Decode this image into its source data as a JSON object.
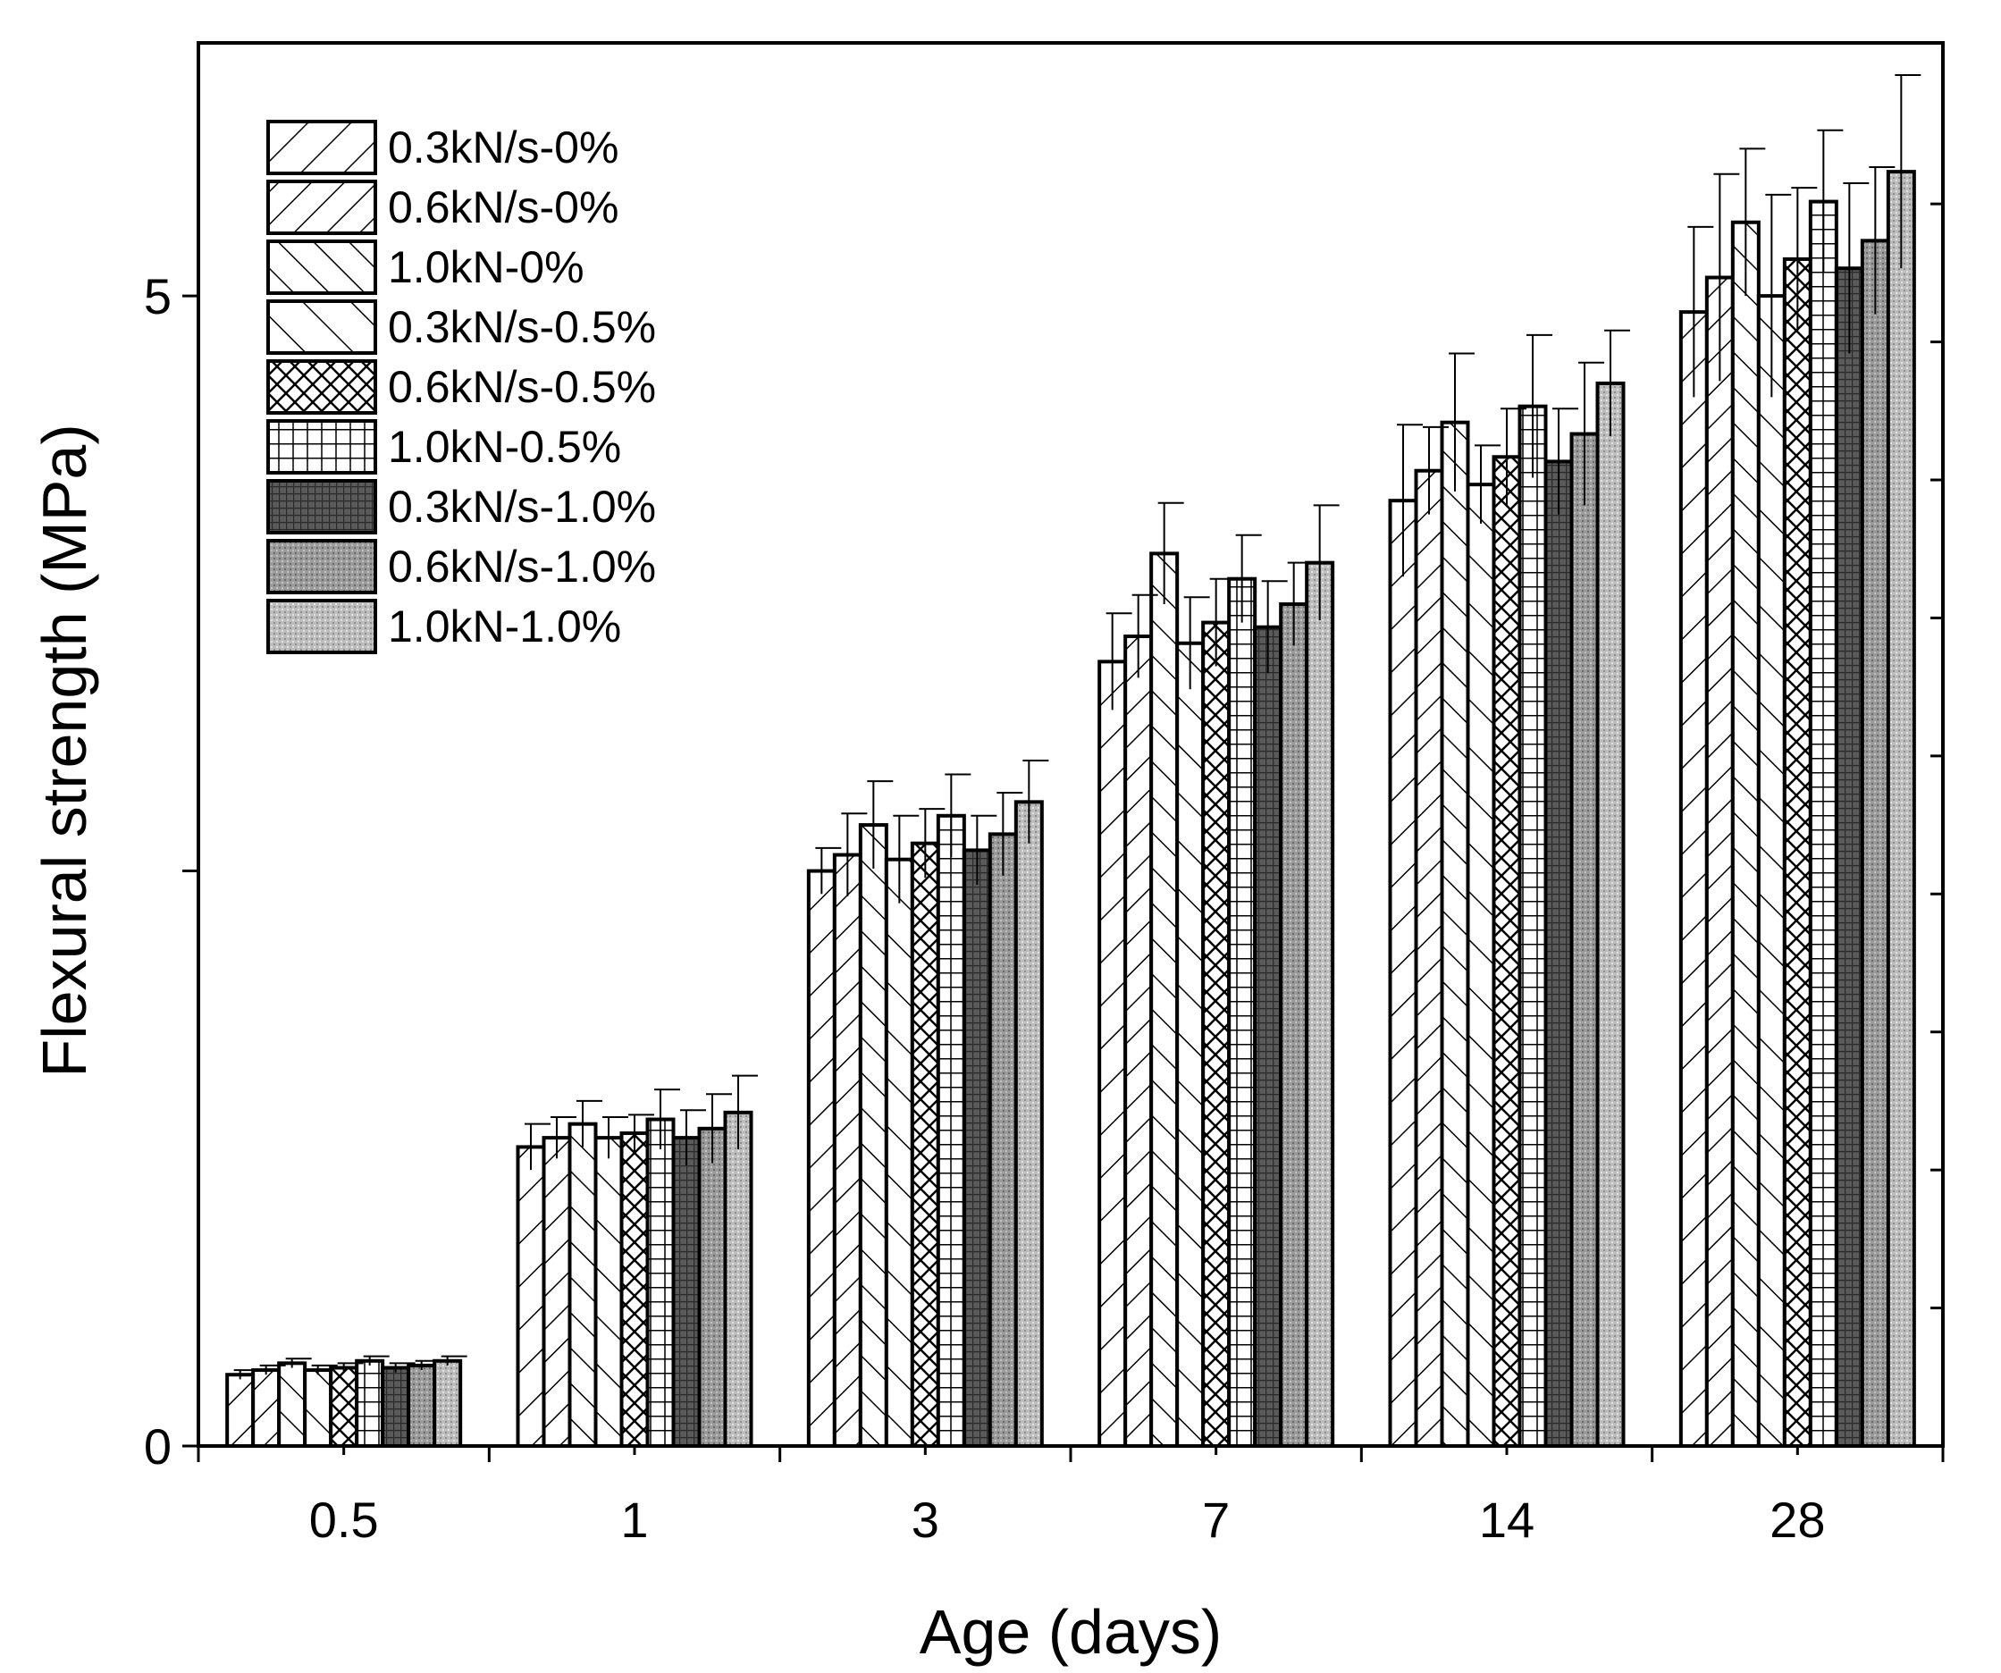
{
  "chart_data": {
    "type": "bar",
    "title": "",
    "xlabel": "Age (days)",
    "ylabel": "Flexural strength (MPa)",
    "categories": [
      "0.5",
      "1",
      "3",
      "7",
      "14",
      "28"
    ],
    "ylim": [
      0,
      6.1
    ],
    "y_ticks": [
      {
        "value": 0,
        "label": "0"
      },
      {
        "value": 5,
        "label": "5"
      }
    ],
    "y_unlabeled_major_ticks": [
      2.5
    ],
    "right_axis_ticks": [
      0.6,
      1.2,
      1.8,
      2.4,
      3.0,
      3.6,
      4.2,
      4.8,
      5.4
    ],
    "legend_position": "top-left",
    "series": [
      {
        "name": "0.3kN/s-0%",
        "pattern": "diag-fwd-wide",
        "values": [
          0.31,
          1.3,
          2.5,
          3.41,
          4.11,
          4.93
        ],
        "errors": [
          0.02,
          0.1,
          0.1,
          0.21,
          0.33,
          0.37
        ]
      },
      {
        "name": "0.6kN/s-0%",
        "pattern": "diag-fwd",
        "values": [
          0.33,
          1.34,
          2.57,
          3.52,
          4.24,
          5.08
        ],
        "errors": [
          0.02,
          0.09,
          0.18,
          0.18,
          0.19,
          0.45
        ]
      },
      {
        "name": "1.0kN-0%",
        "pattern": "diag-back",
        "values": [
          0.36,
          1.4,
          2.7,
          3.88,
          4.45,
          5.32
        ],
        "errors": [
          0.02,
          0.1,
          0.19,
          0.22,
          0.3,
          0.32
        ]
      },
      {
        "name": "0.3kN/s-0.5%",
        "pattern": "diag-back-wide",
        "values": [
          0.33,
          1.34,
          2.55,
          3.49,
          4.18,
          5.0
        ],
        "errors": [
          0.02,
          0.09,
          0.19,
          0.2,
          0.17,
          0.44
        ]
      },
      {
        "name": "0.6kN/s-0.5%",
        "pattern": "cross",
        "values": [
          0.34,
          1.36,
          2.62,
          3.58,
          4.3,
          5.16
        ],
        "errors": [
          0.02,
          0.08,
          0.15,
          0.19,
          0.21,
          0.31
        ]
      },
      {
        "name": "1.0kN-0.5%",
        "pattern": "grid",
        "values": [
          0.37,
          1.42,
          2.74,
          3.77,
          4.52,
          5.41
        ],
        "errors": [
          0.02,
          0.13,
          0.18,
          0.19,
          0.31,
          0.31
        ]
      },
      {
        "name": "0.3kN/s-1.0%",
        "pattern": "dark",
        "values": [
          0.34,
          1.34,
          2.59,
          3.56,
          4.28,
          5.12
        ],
        "errors": [
          0.02,
          0.12,
          0.15,
          0.2,
          0.23,
          0.37
        ]
      },
      {
        "name": "0.6kN/s-1.0%",
        "pattern": "mid",
        "values": [
          0.35,
          1.38,
          2.66,
          3.66,
          4.4,
          5.24
        ],
        "errors": [
          0.02,
          0.15,
          0.18,
          0.18,
          0.31,
          0.32
        ]
      },
      {
        "name": "1.0kN-1.0%",
        "pattern": "light",
        "values": [
          0.37,
          1.45,
          2.8,
          3.84,
          4.62,
          5.54
        ],
        "errors": [
          0.02,
          0.16,
          0.18,
          0.25,
          0.23,
          0.42
        ]
      }
    ]
  }
}
